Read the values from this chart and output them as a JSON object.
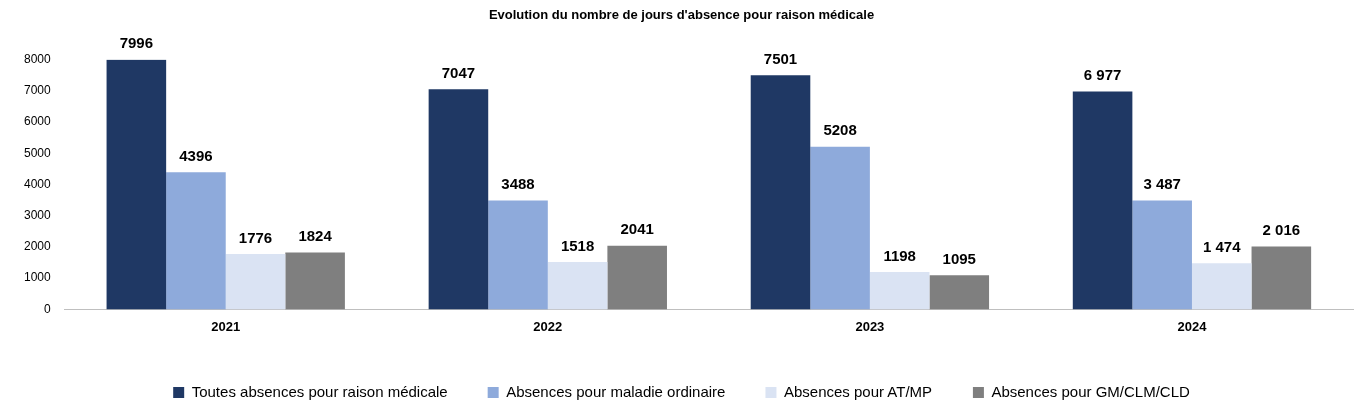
{
  "chart_data": {
    "type": "bar",
    "title": "Evolution du nombre de jours d'absence pour raison médicale",
    "categories": [
      "2021",
      "2022",
      "2023",
      "2024"
    ],
    "series": [
      {
        "name": "Toutes absences pour raison médicale",
        "color": "#1f3864",
        "values": [
          7996,
          7047,
          7501,
          6977
        ],
        "value_labels": [
          "7996",
          "7047",
          "7501",
          "6 977"
        ]
      },
      {
        "name": "Absences pour maladie ordinaire",
        "color": "#8eaadb",
        "values": [
          4396,
          3488,
          5208,
          3487
        ],
        "value_labels": [
          "4396",
          "3488",
          "5208",
          "3 487"
        ]
      },
      {
        "name": "Absences pour AT/MP",
        "color": "#dae3f3",
        "values": [
          1776,
          1518,
          1198,
          1474
        ],
        "value_labels": [
          "1776",
          "1518",
          "1198",
          "1 474"
        ]
      },
      {
        "name": "Absences pour GM/CLM/CLD",
        "color": "#7f7f7f",
        "values": [
          1824,
          2041,
          1095,
          2016
        ],
        "value_labels": [
          "1824",
          "2041",
          "1095",
          "2 016"
        ]
      }
    ],
    "ylim": [
      0,
      8000
    ],
    "yticks": [
      0,
      1000,
      2000,
      3000,
      4000,
      5000,
      6000,
      7000,
      8000
    ],
    "grid": false,
    "legend": "bottom"
  }
}
